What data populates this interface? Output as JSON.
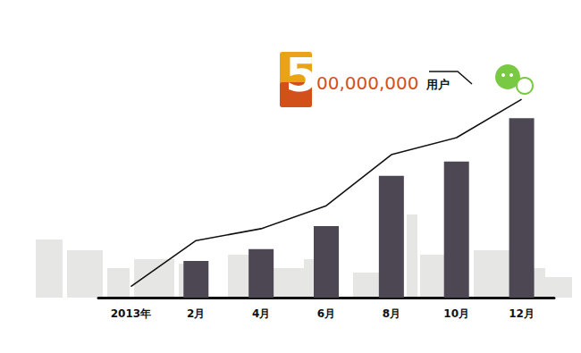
{
  "chart_data": {
    "type": "bar",
    "categories": [
      "2013年",
      "2月",
      "4月",
      "6月",
      "8月",
      "10月",
      "12月"
    ],
    "series": [
      {
        "type": "bar",
        "color": "#4d4753",
        "values": [
          null,
          43,
          57,
          84,
          143,
          160,
          211
        ]
      },
      {
        "type": "line",
        "color": "#111111",
        "marker": "none",
        "values": [
          13,
          67,
          81,
          108,
          168,
          188,
          233
        ]
      }
    ],
    "annotation": {
      "lead": "5",
      "rest": "00,000,000",
      "unit": "用户"
    },
    "ylim": [
      0,
      250
    ],
    "yticks": [
      0,
      250
    ],
    "grid": false,
    "tick_labels": "x"
  }
}
